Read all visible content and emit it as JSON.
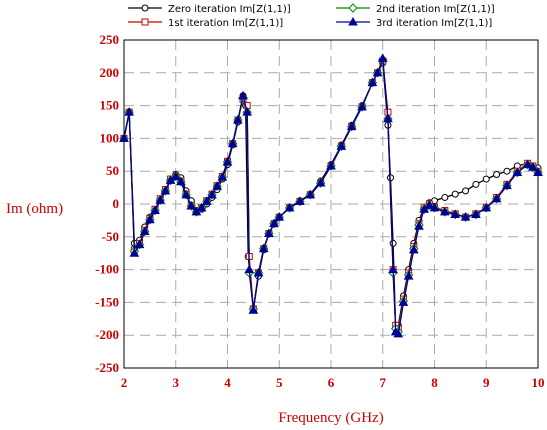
{
  "chart_data": {
    "type": "line",
    "xlabel": "Frequency (GHz)",
    "ylabel": "Im (ohm)",
    "xlim": [
      2,
      10
    ],
    "ylim": [
      -250,
      250
    ],
    "x_ticks": [
      "2",
      "3",
      "4",
      "5",
      "6",
      "7",
      "8",
      "9",
      "10"
    ],
    "y_ticks": [
      "250",
      "200",
      "150",
      "100",
      "50",
      "0",
      "-50",
      "-100",
      "-150",
      "-200",
      "-250"
    ],
    "grid": true,
    "legend_position": "top",
    "series": [
      {
        "name": "Zero iteration Im[Z(1,1)]",
        "color": "#000000",
        "marker": "circle",
        "points": [
          [
            2.0,
            100
          ],
          [
            2.1,
            140
          ],
          [
            2.2,
            -60
          ],
          [
            2.3,
            -55
          ],
          [
            2.4,
            -35
          ],
          [
            2.5,
            -20
          ],
          [
            2.6,
            -10
          ],
          [
            2.7,
            5
          ],
          [
            2.8,
            20
          ],
          [
            2.9,
            38
          ],
          [
            3.0,
            45
          ],
          [
            3.1,
            40
          ],
          [
            3.2,
            20
          ],
          [
            3.3,
            5
          ],
          [
            3.4,
            -10
          ],
          [
            3.5,
            -8
          ],
          [
            3.6,
            0
          ],
          [
            3.7,
            10
          ],
          [
            3.8,
            22
          ],
          [
            3.9,
            38
          ],
          [
            4.0,
            60
          ],
          [
            4.1,
            90
          ],
          [
            4.2,
            125
          ],
          [
            4.3,
            165
          ],
          [
            4.35,
            150
          ],
          [
            4.4,
            -80
          ],
          [
            4.5,
            -160
          ],
          [
            4.6,
            -110
          ],
          [
            4.7,
            -70
          ],
          [
            4.8,
            -45
          ],
          [
            4.9,
            -30
          ],
          [
            5.0,
            -20
          ],
          [
            5.2,
            -5
          ],
          [
            5.4,
            5
          ],
          [
            5.6,
            15
          ],
          [
            5.8,
            35
          ],
          [
            6.0,
            60
          ],
          [
            6.2,
            90
          ],
          [
            6.4,
            120
          ],
          [
            6.6,
            150
          ],
          [
            6.8,
            185
          ],
          [
            6.9,
            200
          ],
          [
            7.0,
            215
          ],
          [
            7.1,
            120
          ],
          [
            7.15,
            40
          ],
          [
            7.2,
            -60
          ],
          [
            7.25,
            -190
          ],
          [
            7.3,
            -185
          ],
          [
            7.4,
            -140
          ],
          [
            7.5,
            -100
          ],
          [
            7.6,
            -60
          ],
          [
            7.7,
            -25
          ],
          [
            7.8,
            -5
          ],
          [
            7.9,
            2
          ],
          [
            8.0,
            5
          ],
          [
            8.2,
            10
          ],
          [
            8.4,
            15
          ],
          [
            8.6,
            20
          ],
          [
            8.8,
            30
          ],
          [
            9.0,
            38
          ],
          [
            9.2,
            45
          ],
          [
            9.4,
            50
          ],
          [
            9.6,
            58
          ],
          [
            9.8,
            62
          ],
          [
            9.9,
            58
          ],
          [
            10.0,
            55
          ]
        ]
      },
      {
        "name": "1st iteration Im[Z(1,1)]",
        "color": "#cc0000",
        "marker": "square",
        "points": [
          [
            2.0,
            100
          ],
          [
            2.1,
            140
          ],
          [
            2.2,
            -70
          ],
          [
            2.3,
            -60
          ],
          [
            2.4,
            -40
          ],
          [
            2.5,
            -22
          ],
          [
            2.6,
            -8
          ],
          [
            2.7,
            8
          ],
          [
            2.8,
            22
          ],
          [
            2.9,
            38
          ],
          [
            3.0,
            42
          ],
          [
            3.1,
            35
          ],
          [
            3.2,
            15
          ],
          [
            3.3,
            -2
          ],
          [
            3.4,
            -10
          ],
          [
            3.5,
            -5
          ],
          [
            3.6,
            5
          ],
          [
            3.7,
            15
          ],
          [
            3.8,
            28
          ],
          [
            3.9,
            42
          ],
          [
            4.0,
            65
          ],
          [
            4.1,
            92
          ],
          [
            4.2,
            128
          ],
          [
            4.3,
            160
          ],
          [
            4.38,
            150
          ],
          [
            4.42,
            -80
          ],
          [
            4.5,
            -160
          ],
          [
            4.6,
            -105
          ],
          [
            4.7,
            -68
          ],
          [
            4.8,
            -45
          ],
          [
            4.9,
            -30
          ],
          [
            5.0,
            -20
          ],
          [
            5.2,
            -6
          ],
          [
            5.4,
            4
          ],
          [
            5.6,
            14
          ],
          [
            5.8,
            32
          ],
          [
            6.0,
            58
          ],
          [
            6.2,
            88
          ],
          [
            6.4,
            118
          ],
          [
            6.6,
            148
          ],
          [
            6.8,
            185
          ],
          [
            6.9,
            200
          ],
          [
            7.0,
            218
          ],
          [
            7.1,
            140
          ],
          [
            7.2,
            -100
          ],
          [
            7.25,
            -185
          ],
          [
            7.3,
            -190
          ],
          [
            7.4,
            -145
          ],
          [
            7.5,
            -105
          ],
          [
            7.6,
            -65
          ],
          [
            7.7,
            -30
          ],
          [
            7.8,
            -5
          ],
          [
            7.9,
            0
          ],
          [
            8.0,
            -5
          ],
          [
            8.2,
            -10
          ],
          [
            8.4,
            -15
          ],
          [
            8.6,
            -20
          ],
          [
            8.8,
            -15
          ],
          [
            9.0,
            -5
          ],
          [
            9.2,
            10
          ],
          [
            9.4,
            30
          ],
          [
            9.6,
            50
          ],
          [
            9.8,
            62
          ],
          [
            9.9,
            58
          ],
          [
            10.0,
            50
          ]
        ]
      },
      {
        "name": "2nd iteration Im[Z(1,1)]",
        "color": "#008800",
        "marker": "diamond",
        "points": [
          [
            2.0,
            100
          ],
          [
            2.1,
            140
          ],
          [
            2.2,
            -72
          ],
          [
            2.3,
            -62
          ],
          [
            2.4,
            -42
          ],
          [
            2.5,
            -24
          ],
          [
            2.6,
            -10
          ],
          [
            2.7,
            6
          ],
          [
            2.8,
            20
          ],
          [
            2.9,
            36
          ],
          [
            3.0,
            42
          ],
          [
            3.1,
            34
          ],
          [
            3.2,
            14
          ],
          [
            3.3,
            -3
          ],
          [
            3.4,
            -12
          ],
          [
            3.5,
            -6
          ],
          [
            3.6,
            4
          ],
          [
            3.7,
            14
          ],
          [
            3.8,
            27
          ],
          [
            3.9,
            41
          ],
          [
            4.0,
            64
          ],
          [
            4.1,
            92
          ],
          [
            4.2,
            128
          ],
          [
            4.3,
            162
          ],
          [
            4.38,
            140
          ],
          [
            4.42,
            -105
          ],
          [
            4.5,
            -160
          ],
          [
            4.6,
            -105
          ],
          [
            4.7,
            -68
          ],
          [
            4.8,
            -45
          ],
          [
            4.9,
            -30
          ],
          [
            5.0,
            -20
          ],
          [
            5.2,
            -6
          ],
          [
            5.4,
            4
          ],
          [
            5.6,
            14
          ],
          [
            5.8,
            32
          ],
          [
            6.0,
            58
          ],
          [
            6.2,
            88
          ],
          [
            6.4,
            118
          ],
          [
            6.6,
            148
          ],
          [
            6.8,
            185
          ],
          [
            6.9,
            200
          ],
          [
            7.0,
            220
          ],
          [
            7.1,
            130
          ],
          [
            7.2,
            -105
          ],
          [
            7.25,
            -190
          ],
          [
            7.3,
            -195
          ],
          [
            7.4,
            -148
          ],
          [
            7.5,
            -108
          ],
          [
            7.6,
            -68
          ],
          [
            7.7,
            -32
          ],
          [
            7.8,
            -8
          ],
          [
            7.9,
            -2
          ],
          [
            8.0,
            -6
          ],
          [
            8.2,
            -12
          ],
          [
            8.4,
            -16
          ],
          [
            8.6,
            -20
          ],
          [
            8.8,
            -16
          ],
          [
            9.0,
            -6
          ],
          [
            9.2,
            8
          ],
          [
            9.4,
            28
          ],
          [
            9.6,
            48
          ],
          [
            9.8,
            60
          ],
          [
            9.9,
            56
          ],
          [
            10.0,
            48
          ]
        ]
      },
      {
        "name": "3rd iteration Im[Z(1,1)]",
        "color": "#000099",
        "marker": "triangle",
        "points": [
          [
            2.0,
            100
          ],
          [
            2.1,
            140
          ],
          [
            2.2,
            -75
          ],
          [
            2.3,
            -62
          ],
          [
            2.4,
            -42
          ],
          [
            2.5,
            -24
          ],
          [
            2.6,
            -10
          ],
          [
            2.7,
            6
          ],
          [
            2.8,
            20
          ],
          [
            2.9,
            36
          ],
          [
            3.0,
            42
          ],
          [
            3.1,
            34
          ],
          [
            3.2,
            14
          ],
          [
            3.3,
            -3
          ],
          [
            3.4,
            -12
          ],
          [
            3.5,
            -6
          ],
          [
            3.6,
            4
          ],
          [
            3.7,
            14
          ],
          [
            3.8,
            27
          ],
          [
            3.9,
            41
          ],
          [
            4.0,
            64
          ],
          [
            4.1,
            92
          ],
          [
            4.2,
            128
          ],
          [
            4.3,
            165
          ],
          [
            4.38,
            140
          ],
          [
            4.42,
            -100
          ],
          [
            4.5,
            -162
          ],
          [
            4.6,
            -105
          ],
          [
            4.7,
            -68
          ],
          [
            4.8,
            -45
          ],
          [
            4.9,
            -30
          ],
          [
            5.0,
            -20
          ],
          [
            5.2,
            -6
          ],
          [
            5.4,
            4
          ],
          [
            5.6,
            14
          ],
          [
            5.8,
            32
          ],
          [
            6.0,
            58
          ],
          [
            6.2,
            88
          ],
          [
            6.4,
            118
          ],
          [
            6.6,
            148
          ],
          [
            6.8,
            185
          ],
          [
            6.9,
            200
          ],
          [
            7.0,
            222
          ],
          [
            7.1,
            130
          ],
          [
            7.2,
            -100
          ],
          [
            7.25,
            -195
          ],
          [
            7.3,
            -198
          ],
          [
            7.4,
            -150
          ],
          [
            7.5,
            -110
          ],
          [
            7.6,
            -70
          ],
          [
            7.7,
            -34
          ],
          [
            7.8,
            -8
          ],
          [
            7.9,
            -2
          ],
          [
            8.0,
            -6
          ],
          [
            8.2,
            -12
          ],
          [
            8.4,
            -16
          ],
          [
            8.6,
            -20
          ],
          [
            8.8,
            -16
          ],
          [
            9.0,
            -6
          ],
          [
            9.2,
            8
          ],
          [
            9.4,
            28
          ],
          [
            9.6,
            48
          ],
          [
            9.8,
            60
          ],
          [
            9.9,
            56
          ],
          [
            10.0,
            48
          ]
        ]
      }
    ]
  }
}
